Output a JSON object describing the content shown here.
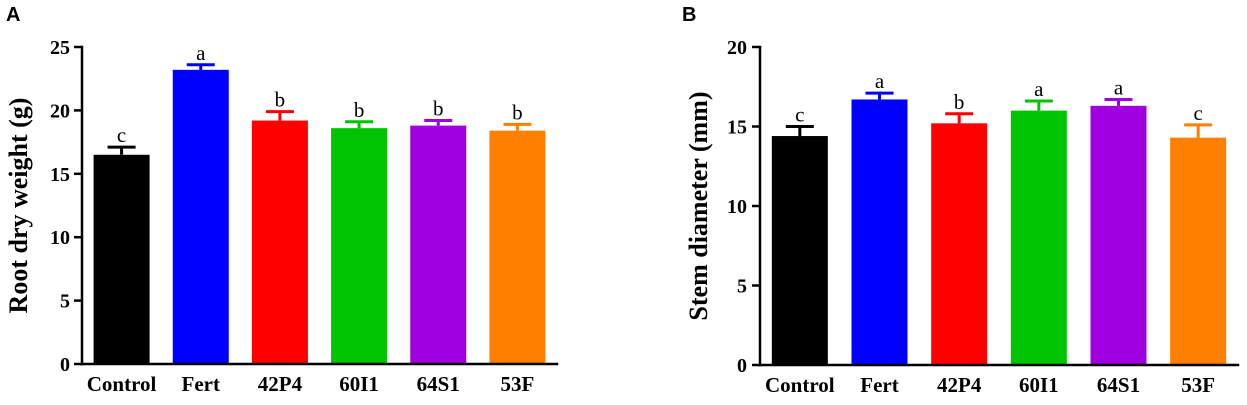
{
  "chart_data": [
    {
      "panel": "A",
      "type": "bar",
      "categories": [
        "Control",
        "Fert",
        "42P4",
        "60I1",
        "64S1",
        "53F"
      ],
      "values": [
        16.5,
        23.2,
        19.2,
        18.6,
        18.8,
        18.4
      ],
      "errors": [
        0.6,
        0.4,
        0.7,
        0.5,
        0.4,
        0.5
      ],
      "letters": [
        "c",
        "a",
        "b",
        "b",
        "b",
        "b"
      ],
      "colors": [
        "#000000",
        "#0000FF",
        "#FF0000",
        "#00C400",
        "#A000E0",
        "#FF8000"
      ],
      "ylabel": "Root dry weight (g)",
      "ylim": [
        0,
        25
      ],
      "yticks": [
        0,
        5,
        10,
        15,
        20,
        25
      ],
      "grid": false
    },
    {
      "panel": "B",
      "type": "bar",
      "categories": [
        "Control",
        "Fert",
        "42P4",
        "60I1",
        "64S1",
        "53F"
      ],
      "values": [
        14.4,
        16.7,
        15.2,
        16.0,
        16.3,
        14.3
      ],
      "errors": [
        0.6,
        0.4,
        0.6,
        0.6,
        0.4,
        0.8
      ],
      "letters": [
        "c",
        "a",
        "b",
        "a",
        "a",
        "c"
      ],
      "colors": [
        "#000000",
        "#0000FF",
        "#FF0000",
        "#00C400",
        "#A000E0",
        "#FF8000"
      ],
      "ylabel": "Stem diameter (mm)",
      "ylim": [
        0,
        20
      ],
      "yticks": [
        0,
        5,
        10,
        15,
        20
      ],
      "grid": false
    }
  ]
}
